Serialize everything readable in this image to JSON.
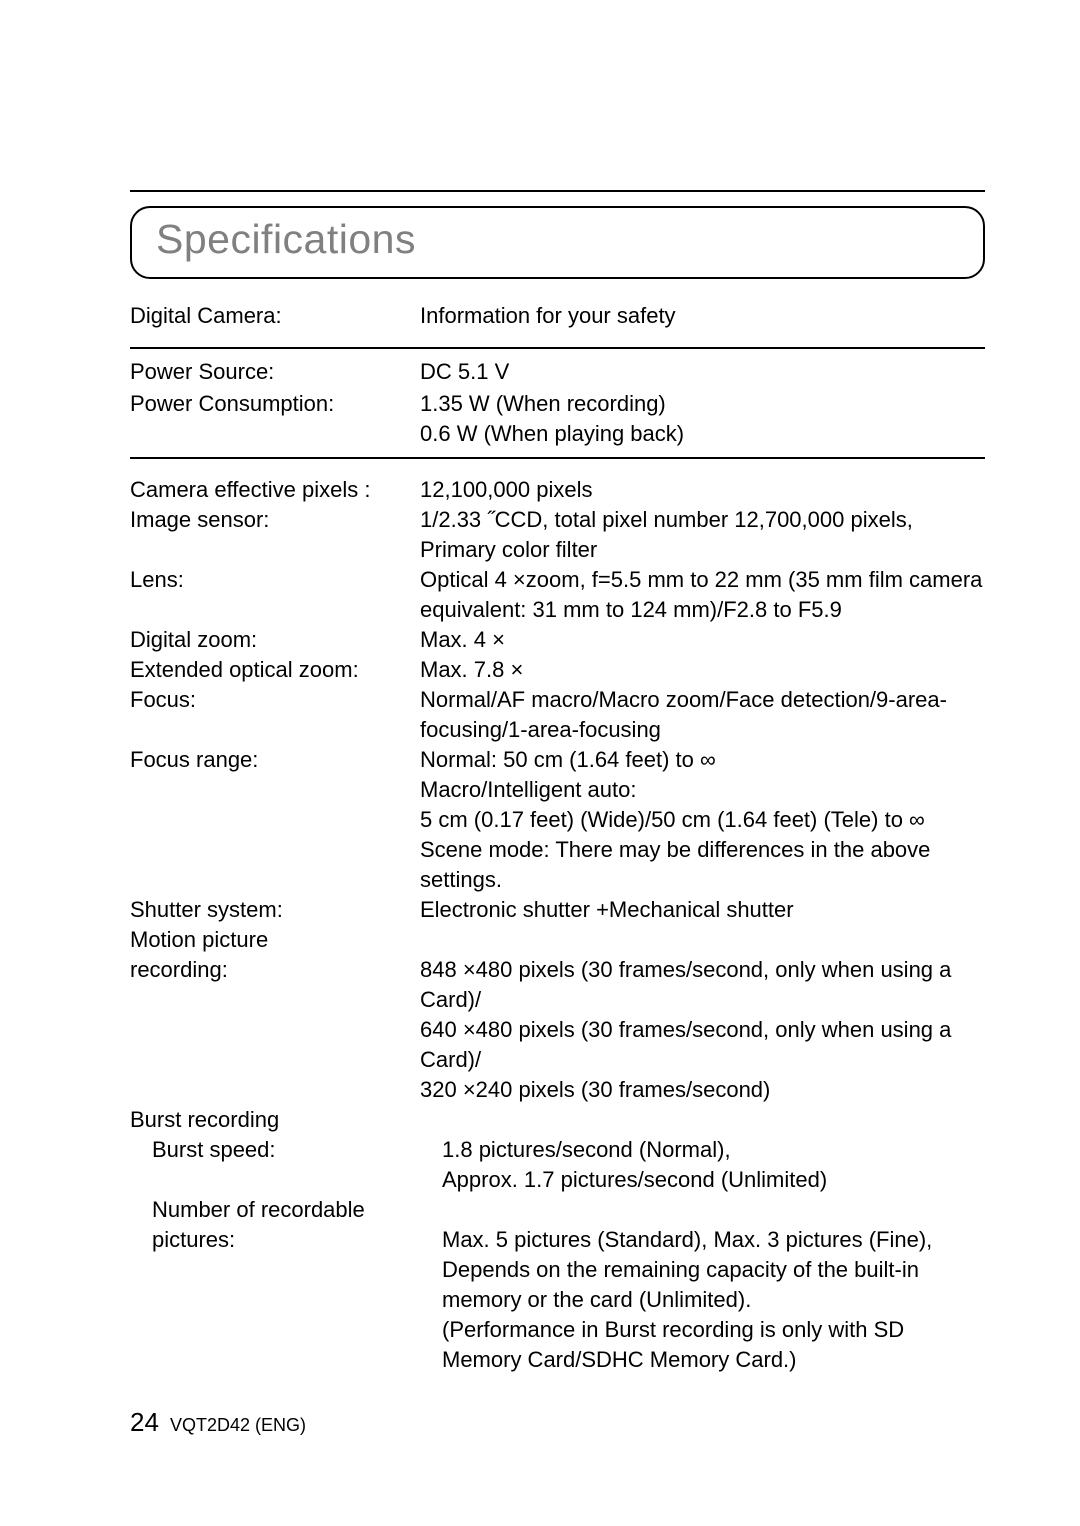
{
  "title": "Specifications",
  "intro": {
    "label": "Digital Camera:",
    "value": "Information for your safety"
  },
  "power": {
    "source": {
      "label": "Power Source:",
      "value": "DC 5.1 V"
    },
    "consumption": {
      "label": "Power Consumption:",
      "line1": "1.35 W (When recording)",
      "line2": "0.6 W (When playing back)"
    }
  },
  "specs": {
    "effective_pixels": {
      "label": "Camera effective pixels   :",
      "value": "12,100,000 pixels"
    },
    "image_sensor": {
      "label": "Image sensor:",
      "value": "1/2.33 ˝CCD, total pixel number 12,700,000 pixels, Primary color filter"
    },
    "lens": {
      "label": "Lens:",
      "value": "Optical 4 ×zoom, f=5.5 mm to 22 mm (35 mm film camera equivalent:  31 mm to 124 mm)/F2.8 to F5.9"
    },
    "digital_zoom": {
      "label": "Digital zoom:",
      "value": "Max. 4 ×"
    },
    "extended_zoom": {
      "label": "Extended  optical zoom:",
      "value": "Max. 7.8 ×"
    },
    "focus": {
      "label": "Focus:",
      "value": "Normal/AF macro/Macro zoom/Face detection/9-area-focusing/1-area-focusing"
    },
    "focus_range": {
      "label": "Focus range:",
      "l1": "Normal:  50 cm (1.64 feet) to  ∞",
      "l2": "Macro/Intelligent auto:",
      "l3": "5 cm (0.17 feet) (Wide)/50 cm (1.64 feet) (Tele) to  ∞",
      "l4": "Scene mode: There may be differences in the above settings."
    },
    "shutter_system": {
      "label": "Shutter system:",
      "value": "Electronic shutter +Mechanical shutter"
    },
    "motion_picture": {
      "label1": "Motion picture",
      "label2": "recording:",
      "l1": "848 ×480 pixels (30 frames/second, only when using a Card)/",
      "l2": "640 ×480 pixels (30 frames/second, only when using a Card)/",
      "l3": "320 ×240 pixels (30 frames/second)"
    },
    "burst_heading": "Burst recording",
    "burst_speed": {
      "label": "Burst speed:",
      "l1": "1.8 pictures/second (Normal),",
      "l2": "Approx. 1.7 pictures/second (Unlimited)"
    },
    "recordable": {
      "label1": "Number of recordable",
      "label2": "pictures:",
      "l1": "Max. 5 pictures (Standard), Max. 3 pictures (Fine),",
      "l2": "Depends on the remaining capacity of the built-in memory or the card (Unlimited).",
      "l3": "(Performance in Burst recording is only with SD Memory Card/SDHC Memory Card.)"
    }
  },
  "footer": {
    "page": "24",
    "code": "VQT2D42 (ENG)"
  }
}
